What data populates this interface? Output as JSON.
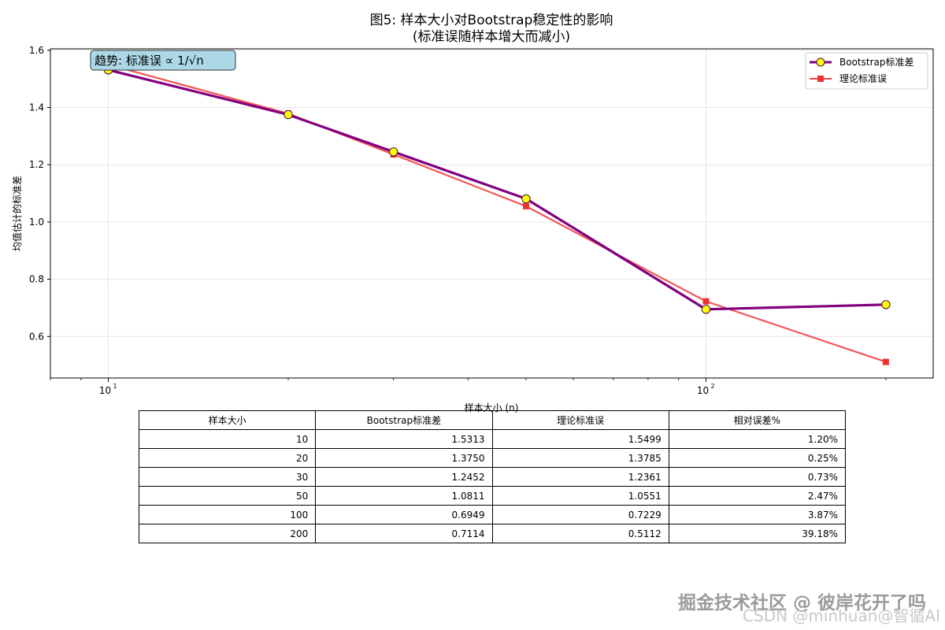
{
  "chart_data": {
    "type": "line",
    "title": "图5: 样本大小对Bootstrap稳定性的影响",
    "subtitle": "(标准误随样本增大而减小)",
    "xlabel": "样本大小 (n)",
    "ylabel": "均值估计的标准差",
    "xscale": "log",
    "xlim": [
      8,
      240
    ],
    "ylim": [
      0.455,
      1.605
    ],
    "x": [
      10,
      20,
      30,
      50,
      100,
      200
    ],
    "series": [
      {
        "name": "Bootstrap标准差",
        "values": [
          1.5313,
          1.375,
          1.2452,
          1.0811,
          0.6949,
          0.7114
        ],
        "color": "#800080",
        "marker": "circle",
        "marker_fill": "#ffff00"
      },
      {
        "name": "理论标准误",
        "values": [
          1.5499,
          1.3785,
          1.2361,
          1.0551,
          0.7229,
          0.5112
        ],
        "color": "#ee4444",
        "marker": "square",
        "marker_fill": "#ee3333"
      }
    ],
    "x_ticks": [
      {
        "value": 10,
        "base": "10",
        "exp": "1"
      },
      {
        "value": 100,
        "base": "10",
        "exp": "2"
      }
    ],
    "y_ticks": [
      0.6,
      0.8,
      1.0,
      1.2,
      1.4,
      1.6
    ],
    "y_tick_labels": [
      "0.6",
      "0.8",
      "1.0",
      "1.2",
      "1.4",
      "1.6"
    ],
    "grid": true,
    "legend_position": "top-right",
    "annotation": "趋势: 标准误 ∝ 1/√n",
    "annotation_box_color": "#add8e6"
  },
  "table": {
    "headers": [
      "样本大小",
      "Bootstrap标准差",
      "理论标准误",
      "相对误差%"
    ],
    "rows": [
      [
        "10",
        "1.5313",
        "1.5499",
        "1.20%"
      ],
      [
        "20",
        "1.3750",
        "1.3785",
        "0.25%"
      ],
      [
        "30",
        "1.2452",
        "1.2361",
        "0.73%"
      ],
      [
        "50",
        "1.0811",
        "1.0551",
        "2.47%"
      ],
      [
        "100",
        "0.6949",
        "0.7229",
        "3.87%"
      ],
      [
        "200",
        "0.7114",
        "0.5112",
        "39.18%"
      ]
    ]
  },
  "watermark": {
    "main": "掘金技术社区 @ 彼岸花开了吗",
    "sub": "CSDN @minhuan@智循AI"
  }
}
